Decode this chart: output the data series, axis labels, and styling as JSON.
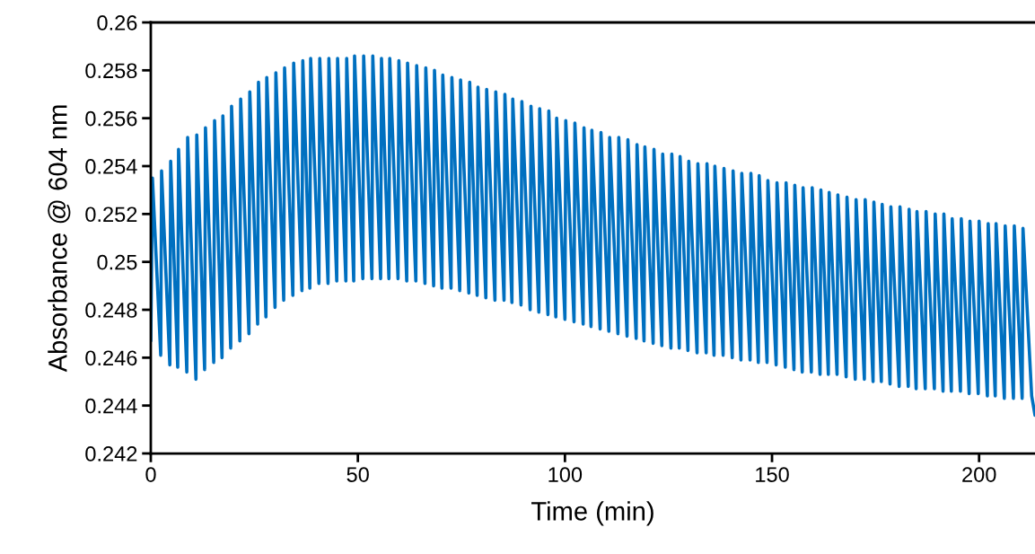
{
  "chart_data": {
    "type": "line",
    "xlabel": "Time (min)",
    "ylabel": "Absorbance @ 604 nm",
    "xlim": [
      0,
      213.5
    ],
    "ylim": [
      0.242,
      0.26
    ],
    "xticks": [
      0,
      50,
      100,
      150,
      200
    ],
    "yticks": [
      0.242,
      0.244,
      0.246,
      0.248,
      0.25,
      0.252,
      0.254,
      0.256,
      0.258,
      0.26
    ],
    "grid": false,
    "legend": false,
    "marker": "none",
    "line_style": "solid",
    "series": [
      {
        "color": "#0070c0",
        "x": [
          0,
          0.4,
          2.4,
          2.6,
          4.6,
          4.8,
          6.5,
          6.7,
          8.7,
          8.9,
          10.9,
          11.1,
          13.0,
          13.2,
          15.2,
          15.4,
          17.2,
          17.4,
          19.3,
          19.5,
          21.5,
          21.7,
          23.7,
          23.9,
          25.8,
          26.0,
          27.8,
          28.0,
          30.0,
          30.2,
          32.1,
          32.3,
          34.3,
          34.5,
          36.5,
          36.7,
          38.4,
          38.6,
          40.6,
          40.8,
          42.8,
          43.0,
          44.9,
          45.1,
          47.1,
          47.3,
          49.0,
          49.2,
          51.2,
          51.4,
          53.4,
          53.6,
          55.5,
          55.7,
          57.5,
          57.7,
          59.7,
          59.9,
          61.8,
          62.0,
          64.0,
          64.2,
          66.2,
          66.4,
          68.3,
          68.5,
          70.3,
          70.5,
          72.5,
          72.7,
          74.6,
          74.8,
          76.8,
          77.0,
          78.8,
          79.0,
          80.9,
          81.1,
          83.1,
          83.3,
          85.3,
          85.5,
          87.2,
          87.4,
          89.4,
          89.6,
          91.6,
          91.8,
          93.7,
          93.9,
          95.9,
          96.1,
          97.8,
          98.0,
          100.0,
          100.2,
          102.2,
          102.4,
          104.4,
          104.6,
          106.3,
          106.5,
          108.5,
          108.7,
          110.6,
          110.8,
          112.8,
          113.0,
          115.0,
          115.2,
          117.2,
          117.4,
          119.1,
          119.3,
          121.3,
          121.5,
          123.4,
          123.6,
          125.6,
          125.8,
          127.6,
          127.8,
          129.7,
          129.9,
          131.9,
          132.1,
          134.1,
          134.3,
          136.0,
          136.2,
          138.2,
          138.4,
          140.4,
          140.6,
          142.5,
          142.7,
          144.7,
          144.9,
          146.7,
          146.9,
          148.8,
          149.0,
          151.0,
          151.2,
          153.2,
          153.4,
          155.3,
          155.5,
          157.3,
          157.5,
          159.5,
          159.7,
          161.6,
          161.8,
          163.6,
          163.8,
          165.7,
          165.9,
          167.9,
          168.1,
          170.1,
          170.3,
          172.3,
          172.5,
          174.4,
          174.6,
          176.4,
          176.6,
          178.5,
          178.7,
          180.7,
          180.9,
          182.9,
          183.1,
          184.8,
          185.0,
          187.0,
          187.2,
          189.2,
          189.4,
          191.3,
          191.5,
          193.3,
          193.5,
          195.5,
          195.7,
          197.6,
          197.8,
          199.8,
          200.0,
          202.0,
          202.2,
          203.9,
          204.1,
          206.1,
          206.3,
          208.3,
          208.5,
          210.4,
          210.6,
          212.7,
          213.5
        ],
        "values": [
          0.2467,
          0.2535,
          0.2461,
          0.2538,
          0.2457,
          0.2542,
          0.2456,
          0.2547,
          0.2454,
          0.2552,
          0.2451,
          0.2553,
          0.2455,
          0.2556,
          0.2458,
          0.2559,
          0.246,
          0.2561,
          0.2464,
          0.2565,
          0.2467,
          0.2568,
          0.247,
          0.2571,
          0.2474,
          0.2575,
          0.2477,
          0.2577,
          0.2481,
          0.2579,
          0.2484,
          0.2581,
          0.2486,
          0.2583,
          0.2488,
          0.2584,
          0.2489,
          0.2585,
          0.2491,
          0.2585,
          0.2491,
          0.2585,
          0.2492,
          0.2585,
          0.2492,
          0.2585,
          0.2492,
          0.2586,
          0.2493,
          0.2586,
          0.2493,
          0.2586,
          0.2493,
          0.2585,
          0.2493,
          0.2585,
          0.2493,
          0.2584,
          0.2492,
          0.2583,
          0.2492,
          0.2582,
          0.2491,
          0.2581,
          0.249,
          0.258,
          0.2489,
          0.2578,
          0.2489,
          0.2577,
          0.2488,
          0.2576,
          0.2487,
          0.2575,
          0.2486,
          0.2573,
          0.2485,
          0.2572,
          0.2484,
          0.2571,
          0.2484,
          0.257,
          0.2483,
          0.2568,
          0.2482,
          0.2567,
          0.248,
          0.2565,
          0.2479,
          0.2564,
          0.2478,
          0.2563,
          0.2477,
          0.256,
          0.2476,
          0.2559,
          0.2475,
          0.2558,
          0.2474,
          0.2556,
          0.2473,
          0.2555,
          0.2472,
          0.2554,
          0.2471,
          0.2552,
          0.247,
          0.2552,
          0.2469,
          0.2551,
          0.2468,
          0.2549,
          0.2467,
          0.2548,
          0.2466,
          0.2547,
          0.2465,
          0.2545,
          0.2464,
          0.2545,
          0.2464,
          0.2544,
          0.2463,
          0.2542,
          0.2462,
          0.2541,
          0.2462,
          0.2541,
          0.2461,
          0.254,
          0.2461,
          0.2539,
          0.246,
          0.2538,
          0.2459,
          0.2537,
          0.2459,
          0.2537,
          0.2458,
          0.2536,
          0.2458,
          0.2534,
          0.2457,
          0.2533,
          0.2456,
          0.2533,
          0.2455,
          0.2532,
          0.2454,
          0.2531,
          0.2454,
          0.2531,
          0.2453,
          0.253,
          0.2453,
          0.2529,
          0.2453,
          0.2528,
          0.2452,
          0.2527,
          0.2451,
          0.2526,
          0.2451,
          0.2526,
          0.245,
          0.2525,
          0.245,
          0.2524,
          0.2449,
          0.2523,
          0.2448,
          0.2523,
          0.2448,
          0.2522,
          0.2447,
          0.2521,
          0.2447,
          0.2521,
          0.2447,
          0.252,
          0.2446,
          0.252,
          0.2446,
          0.2518,
          0.2446,
          0.2518,
          0.2445,
          0.2517,
          0.2445,
          0.2517,
          0.2444,
          0.2516,
          0.2444,
          0.2516,
          0.2443,
          0.2515,
          0.2443,
          0.2515,
          0.2443,
          0.2514,
          0.2444,
          0.2436
        ]
      }
    ]
  }
}
